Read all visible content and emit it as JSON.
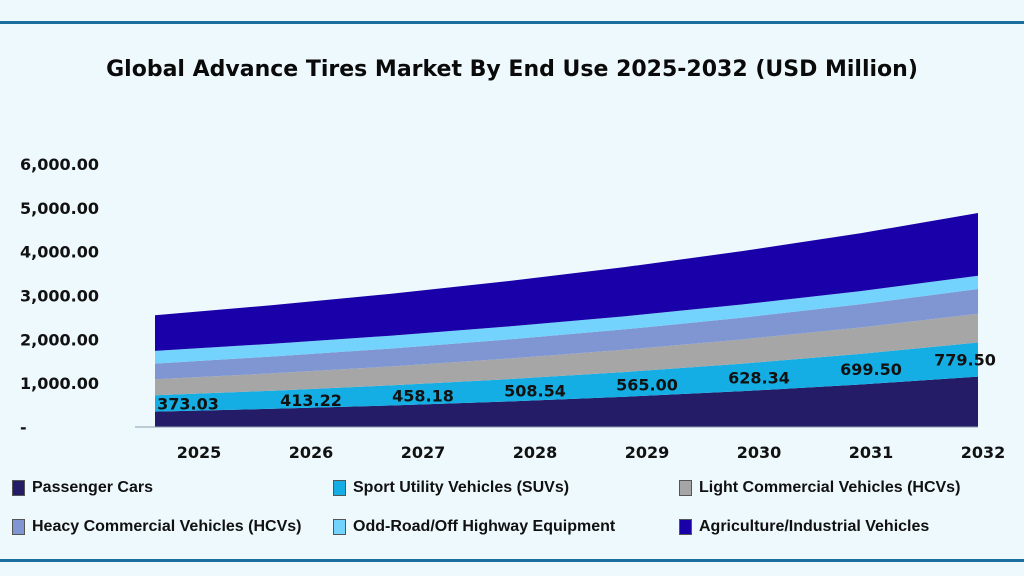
{
  "chart_data": {
    "type": "area",
    "stacked": true,
    "title": "Global Advance Tires Market By End Use 2025-2032 (USD Million)",
    "xlabel": "",
    "ylabel": "",
    "categories": [
      "2025",
      "2026",
      "2027",
      "2028",
      "2029",
      "2030",
      "2031",
      "2032"
    ],
    "ylim": [
      0,
      6000
    ],
    "yticks": [
      "-",
      "1,000.00",
      "2,000.00",
      "3,000.00",
      "4,000.00",
      "5,000.00",
      "6,000.00"
    ],
    "grid": false,
    "legend_position": "bottom",
    "series": [
      {
        "name": "Passenger Cars",
        "color": "#241c66",
        "values": [
          350,
          415,
          491,
          582,
          690,
          818,
          969,
          1149
        ]
      },
      {
        "name": "Sport Utility Vehicles (SUVs)",
        "color": "#14aee4",
        "values": [
          373.03,
          413.22,
          458.18,
          508.54,
          565.0,
          628.34,
          699.5,
          779.5
        ]
      },
      {
        "name": "Light Commercial Vehicles (HCVs)",
        "color": "#a6a6a6",
        "values": [
          365,
          397,
          431,
          469,
          509,
          554,
          602,
          655
        ]
      },
      {
        "name": "Heacy Commercial Vehicles (HCVs)",
        "color": "#7f96d2",
        "values": [
          359,
          383,
          408,
          436,
          465,
          496,
          529,
          564
        ]
      },
      {
        "name": "Odd-Road/Off Highway Equipment",
        "color": "#73d3fc",
        "values": [
          290,
          292,
          294,
          296,
          298,
          300,
          301,
          303
        ]
      },
      {
        "name": "Agriculture/Industrial Vehicles",
        "color": "#1a00a8",
        "values": [
          812,
          881,
          955,
          1035,
          1123,
          1218,
          1320,
          1432
        ]
      }
    ],
    "data_labels": [
      "373.03",
      "413.22",
      "458.18",
      "508.54",
      "565.00",
      "628.34",
      "699.50",
      "779.50"
    ]
  }
}
